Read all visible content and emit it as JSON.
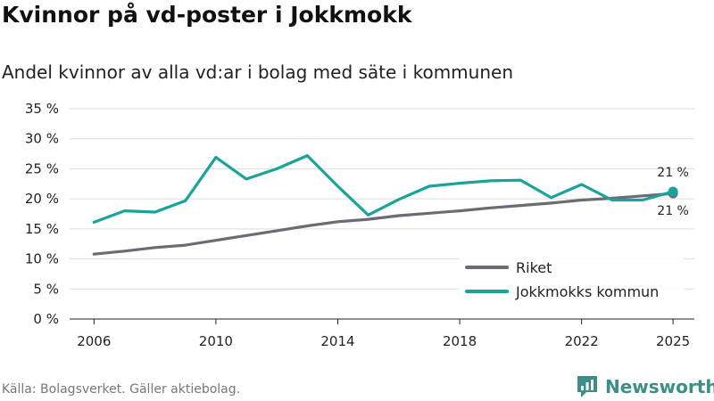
{
  "header": {
    "title": "Kvinnor på vd-poster i Jokkmokk",
    "subtitle": "Andel kvinnor av alla vd:ar i bolag med säte i kommunen"
  },
  "footer": {
    "source": "Källa: Bolagsverket. Gäller aktiebolag.",
    "brand": "Newsworthy"
  },
  "chart_data": {
    "type": "line",
    "title": "Kvinnor på vd-poster i Jokkmokk",
    "subtitle": "Andel kvinnor av alla vd:ar i bolag med säte i kommunen",
    "xlabel": "",
    "ylabel": "",
    "x": [
      2006,
      2007,
      2008,
      2009,
      2010,
      2011,
      2012,
      2013,
      2014,
      2015,
      2016,
      2017,
      2018,
      2019,
      2020,
      2021,
      2022,
      2023,
      2024,
      2025
    ],
    "x_ticks": [
      2006,
      2010,
      2014,
      2018,
      2022,
      2025
    ],
    "x_tick_labels": [
      "2006",
      "2010",
      "2014",
      "2018",
      "2022",
      "2025"
    ],
    "ylim": [
      0,
      35
    ],
    "y_ticks": [
      0,
      5,
      10,
      15,
      20,
      25,
      30,
      35
    ],
    "y_tick_labels": [
      "0 %",
      "5 %",
      "10 %",
      "15 %",
      "20 %",
      "25 %",
      "30 %",
      "35 %"
    ],
    "grid": true,
    "legend_position": "bottom-right",
    "series": [
      {
        "name": "Riket",
        "color": "#6e6a73",
        "values": [
          10.8,
          11.3,
          11.9,
          12.3,
          13.1,
          13.9,
          14.7,
          15.5,
          16.2,
          16.6,
          17.2,
          17.6,
          18.0,
          18.5,
          18.9,
          19.3,
          19.8,
          20.1,
          20.5,
          20.9
        ],
        "end_label": "21 %",
        "end_label_side": "below"
      },
      {
        "name": "Jokkmokks kommun",
        "color": "#1aa39a",
        "values": [
          16.1,
          18.0,
          17.8,
          19.7,
          26.9,
          23.3,
          25.0,
          27.2,
          22.1,
          17.3,
          19.9,
          22.1,
          22.6,
          23.0,
          23.1,
          20.2,
          22.4,
          19.8,
          19.8,
          21.2
        ],
        "end_label": "21 %",
        "end_label_side": "above"
      }
    ]
  }
}
